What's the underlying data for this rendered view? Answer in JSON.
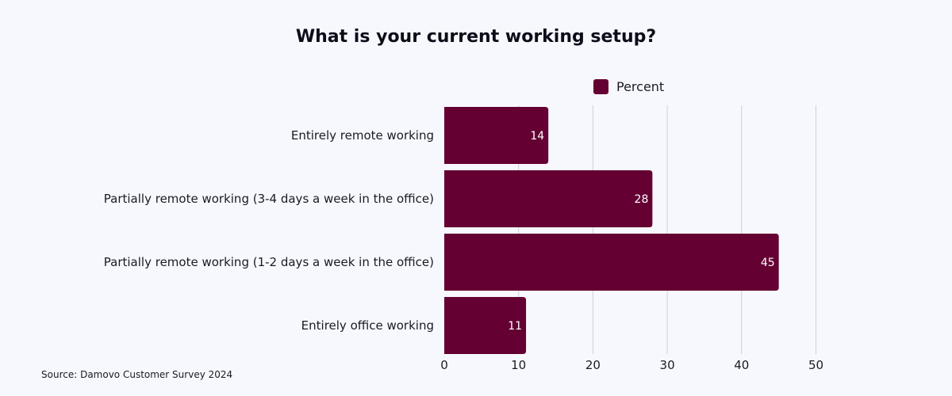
{
  "chart_data": {
    "type": "bar",
    "orientation": "horizontal",
    "title": "What is your current working setup?",
    "categories": [
      "Entirely remote working",
      "Partially remote working (3-4 days a week in the office)",
      "Partially remote working (1-2 days a week in the office)",
      "Entirely office working"
    ],
    "series": [
      {
        "name": "Percent",
        "values": [
          14,
          28,
          45,
          11
        ]
      }
    ],
    "xlim": [
      0,
      50
    ],
    "xticks": [
      0,
      10,
      20,
      30,
      40,
      50
    ],
    "data_labels": true,
    "grid": "vertical",
    "legend": "top-right",
    "bar_color": "#640032"
  },
  "source": "Source: Damovo Customer Survey 2024"
}
